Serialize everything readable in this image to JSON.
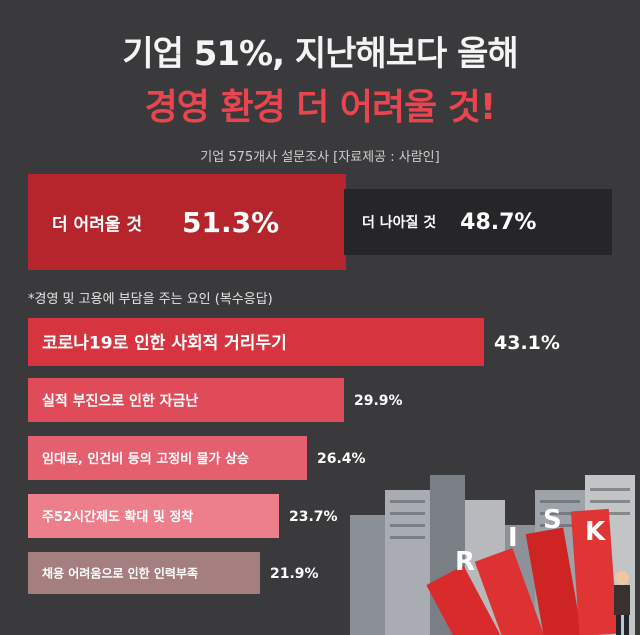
{
  "title_line1": "기업 51%, 지난해보다 올해",
  "title_line2": "경영 환경 더 어려울 것!",
  "source": "기업 575개사 설문조사  [자료제공 : 사람인]",
  "outlook": {
    "worse_label": "더 어려울 것",
    "worse_pct": "51.3%",
    "better_label": "더 나아질 것",
    "better_pct": "48.7%"
  },
  "subheading": "*경영 및 고용에 부담을 주는 요인 (복수응답)",
  "colors": {
    "background": "#3a393b",
    "title_accent": "#e9454f",
    "worse_bar": "#b6242c",
    "better_bar": "#262528"
  },
  "illustration": {
    "letters": [
      "R",
      "I",
      "S",
      "K"
    ]
  },
  "chart_data": [
    {
      "type": "bar",
      "orientation": "horizontal",
      "title": "",
      "categories": [
        "더 어려울 것",
        "더 나아질 것"
      ],
      "values": [
        51.3,
        48.7
      ],
      "labels": [
        "51.3%",
        "48.7%"
      ],
      "unit": "%"
    },
    {
      "type": "bar",
      "orientation": "horizontal",
      "title": "*경영 및 고용에 부담을 주는 요인 (복수응답)",
      "categories": [
        "코로나19로 인한 사회적 거리두기",
        "실적 부진으로 인한 자금난",
        "임대료, 인건비 등의 고정비 물가 상승",
        "주52시간제도 확대 및 정착",
        "채용 어려움으로 인한 인력부족"
      ],
      "values": [
        43.1,
        29.9,
        26.4,
        23.7,
        21.9
      ],
      "labels": [
        "43.1%",
        "29.9%",
        "26.4%",
        "23.7%",
        "21.9%"
      ],
      "colors": [
        "#d6343f",
        "#e04b59",
        "#e4606e",
        "#ec7f8b",
        "#a57f80"
      ],
      "unit": "%",
      "xlim": [
        0,
        43.1
      ]
    }
  ]
}
